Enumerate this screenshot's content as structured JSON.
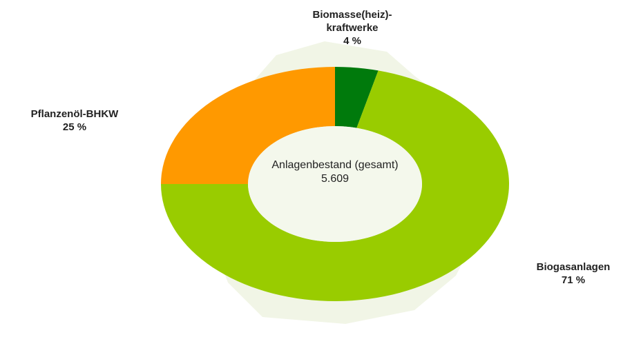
{
  "chart_data": {
    "type": "donut",
    "categories": [
      "Biomasse(heiz)-kraftwerke",
      "Biogasanlagen",
      "Pflanzenöl-BHKW"
    ],
    "values": [
      4,
      71,
      25
    ],
    "value_labels": [
      "4 %",
      "71 %",
      "25 %"
    ],
    "colors": [
      "#007a0c",
      "#99cc00",
      "#ff9900"
    ],
    "center_label": "Anlagenbestand (gesamt)",
    "center_total": "5.609"
  }
}
